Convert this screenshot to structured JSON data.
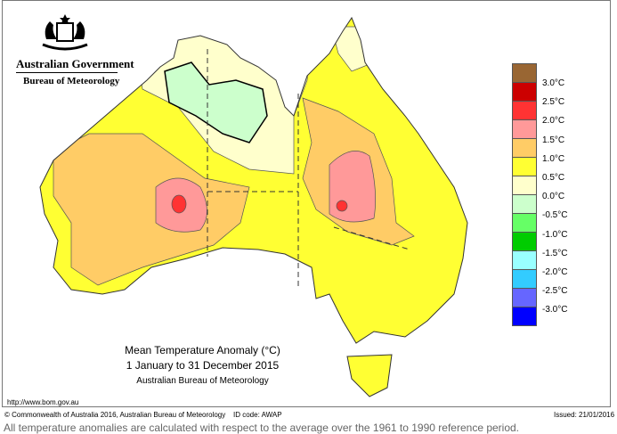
{
  "header": {
    "gov_name": "Australian Government",
    "agency": "Bureau of Meteorology",
    "crest_icon": "commonwealth-coat-of-arms"
  },
  "map": {
    "title": "Mean Temperature Anomaly (°C)",
    "period": "1 January to 31 December 2015",
    "source": "Australian Bureau of Meteorology",
    "colors": {
      "below_0": "#ccffcc",
      "0_0.5": "#ffffcc",
      "0.5_1": "#ffff33",
      "1_1.5": "#ffcc66",
      "1.5_2": "#ff9999",
      "2_2.5": "#ff3333"
    }
  },
  "legend": {
    "swatches": [
      "#996633",
      "#cc0000",
      "#ff3333",
      "#ff9999",
      "#ffcc66",
      "#ffff33",
      "#ffffcc",
      "#ccffcc",
      "#66ff66",
      "#00cc00",
      "#99ffff",
      "#33ccff",
      "#6666ff",
      "#0000ff"
    ],
    "labels": [
      "3.0°C",
      "2.5°C",
      "2.0°C",
      "1.5°C",
      "1.0°C",
      "0.5°C",
      "0.0°C",
      "-0.5°C",
      "-1.0°C",
      "-1.5°C",
      "-2.0°C",
      "-2.5°C",
      "-3.0°C"
    ]
  },
  "footer": {
    "url": "http://www.bom.gov.au",
    "copyright": "© Commonwealth of Australia 2016, Australian Bureau of Meteorology",
    "id_code": "ID code: AWAP",
    "issued": "Issued: 21/01/2016",
    "note": "All temperature anomalies are calculated with respect to the average over the 1961 to 1990 reference period."
  }
}
